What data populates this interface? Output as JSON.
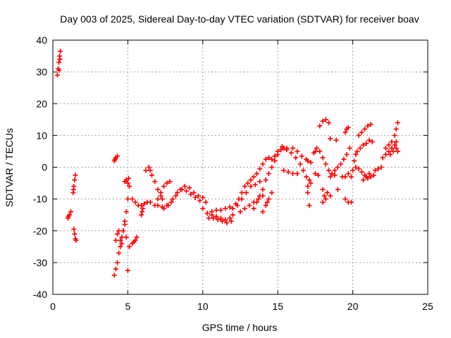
{
  "chart_data": {
    "type": "scatter",
    "title": "Day 003 of 2025, Sidereal Day-to-day VTEC variation (SDTVAR) for receiver boav",
    "xlabel": "GPS time / hours",
    "ylabel": "SDTVAR / TECUs",
    "xlim": [
      0,
      25
    ],
    "ylim": [
      -40,
      40
    ],
    "xticks": [
      0,
      5,
      10,
      15,
      20,
      25
    ],
    "yticks": [
      -40,
      -30,
      -20,
      -10,
      0,
      10,
      20,
      30,
      40
    ],
    "grid": true,
    "marker": "+",
    "color": "#ff0000",
    "series": [
      {
        "name": "SDTVAR",
        "points": [
          [
            0.3,
            29
          ],
          [
            0.35,
            31
          ],
          [
            0.4,
            33
          ],
          [
            0.45,
            35
          ],
          [
            0.5,
            36.5
          ],
          [
            0.42,
            30.5
          ],
          [
            0.48,
            34
          ],
          [
            1.0,
            -16
          ],
          [
            1.1,
            -15
          ],
          [
            1.2,
            -14
          ],
          [
            1.05,
            -15.5
          ],
          [
            1.35,
            -8
          ],
          [
            1.4,
            -6
          ],
          [
            1.45,
            -4
          ],
          [
            1.5,
            -2.5
          ],
          [
            1.38,
            -7
          ],
          [
            1.4,
            -19.5
          ],
          [
            1.45,
            -21
          ],
          [
            1.5,
            -22.5
          ],
          [
            1.55,
            -23
          ],
          [
            4.1,
            2
          ],
          [
            4.2,
            3
          ],
          [
            4.3,
            3.5
          ],
          [
            4.15,
            2.5
          ],
          [
            4.1,
            -34
          ],
          [
            4.2,
            -32
          ],
          [
            4.3,
            -30
          ],
          [
            4.4,
            -27
          ],
          [
            4.5,
            -25
          ],
          [
            4.6,
            -22
          ],
          [
            4.7,
            -20
          ],
          [
            4.8,
            -17
          ],
          [
            4.9,
            -14
          ],
          [
            5.0,
            -10
          ],
          [
            5.1,
            -6
          ],
          [
            5.0,
            -5
          ],
          [
            4.9,
            -4
          ],
          [
            4.8,
            -4.5
          ],
          [
            5.05,
            -3.5
          ],
          [
            4.2,
            -23
          ],
          [
            4.3,
            -21
          ],
          [
            4.4,
            -20
          ],
          [
            4.5,
            -23
          ],
          [
            4.6,
            -24
          ],
          [
            4.7,
            -20
          ],
          [
            4.8,
            -18
          ],
          [
            4.9,
            -22
          ],
          [
            5.0,
            -32.5
          ],
          [
            5.3,
            -10
          ],
          [
            5.5,
            -11
          ],
          [
            5.7,
            -12
          ],
          [
            5.9,
            -12
          ],
          [
            6.1,
            -11.5
          ],
          [
            6.3,
            -11
          ],
          [
            5.1,
            -25
          ],
          [
            5.3,
            -24
          ],
          [
            5.5,
            -23
          ],
          [
            5.6,
            -22
          ],
          [
            5.4,
            -23.5
          ],
          [
            5.9,
            -15
          ],
          [
            5.95,
            -14
          ],
          [
            6.0,
            -13
          ],
          [
            6.2,
            -1
          ],
          [
            6.4,
            0
          ],
          [
            6.5,
            -1
          ],
          [
            6.6,
            -2.5
          ],
          [
            6.8,
            -4.5
          ],
          [
            7.0,
            -7
          ],
          [
            7.2,
            -9
          ],
          [
            7.3,
            -10
          ],
          [
            6.5,
            -11
          ],
          [
            6.8,
            -12
          ],
          [
            7.0,
            -10
          ],
          [
            7.2,
            -8
          ],
          [
            7.4,
            -6
          ],
          [
            7.6,
            -5
          ],
          [
            7.8,
            -4.5
          ],
          [
            7.0,
            -12
          ],
          [
            7.3,
            -12.5
          ],
          [
            7.6,
            -12
          ],
          [
            7.9,
            -11
          ],
          [
            8.2,
            -9
          ],
          [
            8.5,
            -7
          ],
          [
            8.8,
            -6
          ],
          [
            9.1,
            -6.5
          ],
          [
            9.4,
            -8
          ],
          [
            9.7,
            -9
          ],
          [
            10.0,
            -9.5
          ],
          [
            10.2,
            -11
          ],
          [
            7.4,
            -13
          ],
          [
            7.7,
            -12
          ],
          [
            8.0,
            -10
          ],
          [
            8.3,
            -8
          ],
          [
            8.6,
            -7
          ],
          [
            8.9,
            -7.5
          ],
          [
            9.2,
            -8.5
          ],
          [
            9.5,
            -9.5
          ],
          [
            9.8,
            -10.5
          ],
          [
            10.0,
            -13
          ],
          [
            10.3,
            -14.5
          ],
          [
            10.6,
            -15
          ],
          [
            10.9,
            -15.5
          ],
          [
            11.2,
            -16
          ],
          [
            11.5,
            -16.5
          ],
          [
            11.8,
            -16
          ],
          [
            12.0,
            -15
          ],
          [
            10.4,
            -16
          ],
          [
            10.7,
            -16
          ],
          [
            11.0,
            -16.5
          ],
          [
            11.3,
            -17
          ],
          [
            11.6,
            -17.5
          ],
          [
            11.9,
            -17
          ],
          [
            10.6,
            -14
          ],
          [
            10.9,
            -13.5
          ],
          [
            11.2,
            -13.5
          ],
          [
            11.5,
            -13
          ],
          [
            11.8,
            -12.5
          ],
          [
            12.0,
            -13
          ],
          [
            12.2,
            -11.5
          ],
          [
            12.4,
            -10
          ],
          [
            12.6,
            -8
          ],
          [
            12.8,
            -6
          ],
          [
            13.0,
            -5
          ],
          [
            13.2,
            -4
          ],
          [
            13.4,
            -3
          ],
          [
            12.3,
            -12
          ],
          [
            12.6,
            -10
          ],
          [
            12.9,
            -8
          ],
          [
            13.2,
            -6
          ],
          [
            13.5,
            -5.5
          ],
          [
            13.8,
            -4.5
          ],
          [
            12.5,
            -14
          ],
          [
            12.8,
            -13
          ],
          [
            13.1,
            -12
          ],
          [
            13.4,
            -11
          ],
          [
            13.7,
            -10
          ],
          [
            14.0,
            -9
          ],
          [
            13.4,
            -13
          ],
          [
            13.6,
            -11
          ],
          [
            13.8,
            -9
          ],
          [
            14.0,
            -7
          ],
          [
            14.2,
            -4
          ],
          [
            14.4,
            -2
          ],
          [
            14.6,
            0
          ],
          [
            14.8,
            2
          ],
          [
            15.0,
            4
          ],
          [
            15.2,
            5.5
          ],
          [
            15.4,
            6
          ],
          [
            13.6,
            -2
          ],
          [
            13.8,
            -0.5
          ],
          [
            14.0,
            1
          ],
          [
            14.2,
            2.5
          ],
          [
            14.4,
            3
          ],
          [
            14.6,
            2.5
          ],
          [
            14.8,
            3.5
          ],
          [
            15.0,
            5
          ],
          [
            15.3,
            6.5
          ],
          [
            15.6,
            6
          ],
          [
            14.0,
            -14
          ],
          [
            14.2,
            -12
          ],
          [
            14.4,
            -10
          ],
          [
            14.6,
            -8
          ],
          [
            14.3,
            -11
          ],
          [
            15.4,
            -1
          ],
          [
            15.7,
            -1.5
          ],
          [
            16.0,
            -2
          ],
          [
            16.3,
            -2
          ],
          [
            15.6,
            5.5
          ],
          [
            15.9,
            4.5
          ],
          [
            16.2,
            3
          ],
          [
            16.5,
            1
          ],
          [
            16.7,
            -1
          ],
          [
            16.9,
            -3
          ],
          [
            17.1,
            -4
          ],
          [
            16.0,
            6
          ],
          [
            16.3,
            5
          ],
          [
            16.6,
            3.5
          ],
          [
            16.9,
            2.5
          ],
          [
            17.0,
            -6
          ],
          [
            17.0,
            -8
          ],
          [
            17.2,
            -5
          ],
          [
            17.5,
            5
          ],
          [
            17.6,
            6
          ],
          [
            17.4,
            4.5
          ],
          [
            17.5,
            -2
          ],
          [
            17.7,
            -2.5
          ],
          [
            17.0,
            2
          ],
          [
            17.2,
            1.5
          ],
          [
            17.1,
            -12
          ],
          [
            17.8,
            13
          ],
          [
            18.0,
            14.5
          ],
          [
            18.2,
            15
          ],
          [
            18.4,
            14
          ],
          [
            17.8,
            5
          ],
          [
            18.0,
            3
          ],
          [
            18.2,
            1
          ],
          [
            18.4,
            -1
          ],
          [
            18.6,
            -2
          ],
          [
            18.8,
            -1
          ],
          [
            19.0,
            0
          ],
          [
            19.2,
            1
          ],
          [
            19.4,
            2.5
          ],
          [
            19.6,
            4
          ],
          [
            19.8,
            6
          ],
          [
            18.0,
            -7
          ],
          [
            18.1,
            -9
          ],
          [
            18.2,
            -10
          ],
          [
            18.0,
            -11
          ],
          [
            18.3,
            -8
          ],
          [
            18.5,
            -9
          ],
          [
            18.5,
            9
          ],
          [
            18.9,
            8.5
          ],
          [
            18.5,
            -3
          ],
          [
            18.8,
            -2.5
          ],
          [
            19.0,
            -7
          ],
          [
            19.3,
            -3
          ],
          [
            19.5,
            -3
          ],
          [
            19.5,
            -10
          ],
          [
            19.7,
            -11
          ],
          [
            19.9,
            -11
          ],
          [
            19.5,
            11
          ],
          [
            19.6,
            12
          ],
          [
            19.7,
            12.5
          ],
          [
            19.7,
            -2
          ],
          [
            19.9,
            -3
          ],
          [
            20.0,
            -1
          ],
          [
            20.1,
            2
          ],
          [
            20.2,
            4
          ],
          [
            20.3,
            5
          ],
          [
            20.5,
            6
          ],
          [
            20.7,
            7
          ],
          [
            20.9,
            7.5
          ],
          [
            21.1,
            8.5
          ],
          [
            21.3,
            8
          ],
          [
            20.4,
            10
          ],
          [
            20.6,
            11
          ],
          [
            20.8,
            12
          ],
          [
            21.0,
            13
          ],
          [
            21.2,
            13.5
          ],
          [
            20.2,
            0
          ],
          [
            20.4,
            -0.5
          ],
          [
            20.6,
            -1.5
          ],
          [
            20.8,
            -2.5
          ],
          [
            21.0,
            -3.5
          ],
          [
            21.2,
            -3
          ],
          [
            21.4,
            -2.5
          ],
          [
            20.7,
            -4
          ],
          [
            20.9,
            -3
          ],
          [
            21.1,
            -2
          ],
          [
            21.5,
            -1
          ],
          [
            21.7,
            -0.5
          ],
          [
            21.9,
            0
          ],
          [
            22.0,
            3
          ],
          [
            22.2,
            4
          ],
          [
            22.4,
            5
          ],
          [
            22.6,
            6
          ],
          [
            22.8,
            7
          ],
          [
            22.9,
            8
          ],
          [
            22.2,
            6
          ],
          [
            22.4,
            7
          ],
          [
            22.6,
            8
          ],
          [
            22.8,
            10
          ],
          [
            22.9,
            12
          ],
          [
            23.0,
            14
          ],
          [
            22.5,
            4
          ],
          [
            22.7,
            5
          ],
          [
            22.9,
            6
          ],
          [
            23.0,
            5
          ]
        ]
      }
    ]
  }
}
